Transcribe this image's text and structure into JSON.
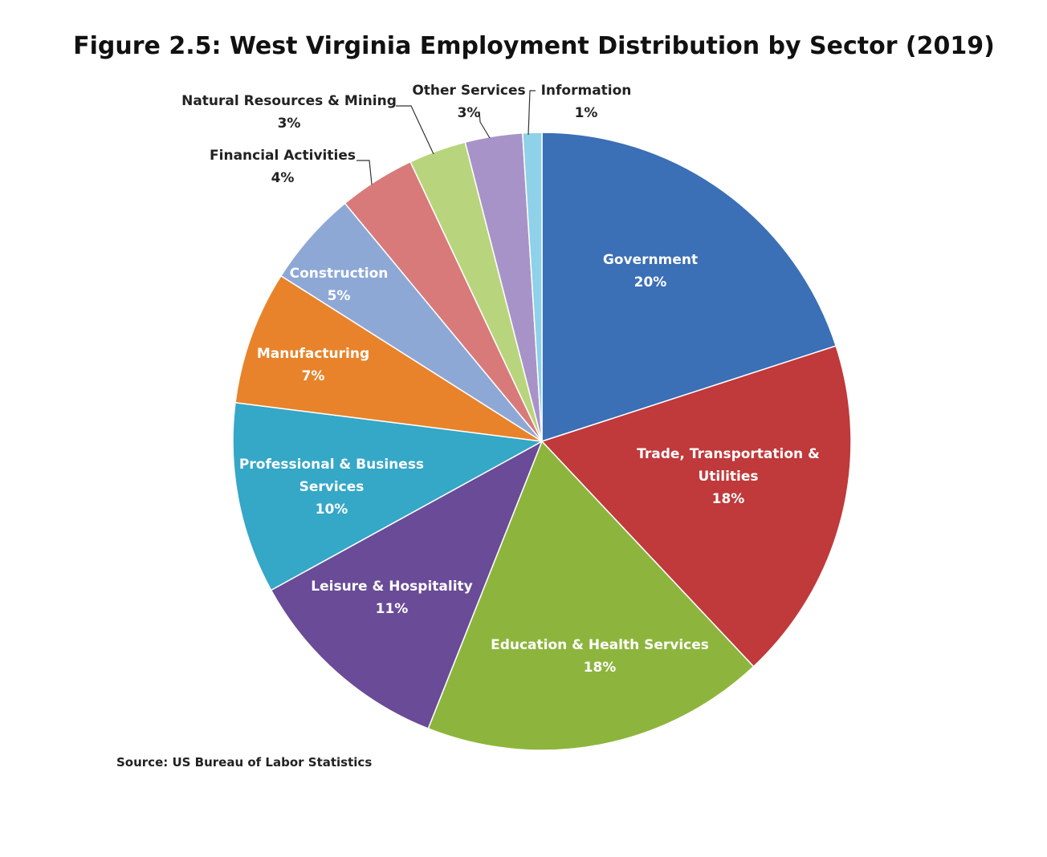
{
  "chart_data": {
    "type": "pie",
    "title": "Figure 2.5: West Virginia Employment Distribution by Sector (2019)",
    "categories": [
      "Government",
      "Trade, Transportation & Utilities",
      "Education & Health Services",
      "Leisure & Hospitality",
      "Professional & Business Services",
      "Manufacturing",
      "Construction",
      "Financial Activities",
      "Natural Resources & Mining",
      "Other Services",
      "Information"
    ],
    "values": [
      20,
      18,
      18,
      11,
      10,
      7,
      5,
      4,
      3,
      3,
      1
    ],
    "value_labels": [
      "20%",
      "18%",
      "18%",
      "11%",
      "10%",
      "7%",
      "5%",
      "4%",
      "3%",
      "3%",
      "1%"
    ],
    "colors": [
      "#3b6fb6",
      "#c0393b",
      "#8db53d",
      "#6a4b97",
      "#35a7c7",
      "#e8832b",
      "#8ea8d6",
      "#d97a7a",
      "#b8d57d",
      "#a893c8",
      "#8fd1e8"
    ],
    "source": "Source: US Bureau of Labor Statistics"
  }
}
